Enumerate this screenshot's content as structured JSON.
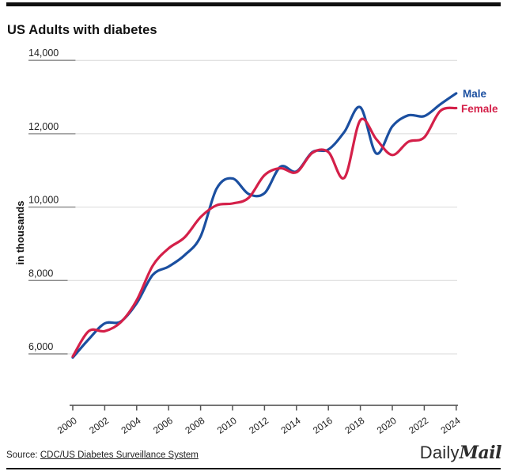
{
  "page": {
    "title": "US Adults with diabetes",
    "source_prefix": "Source: ",
    "source_link": "CDC/US Diabetes Surveillance System",
    "brand": {
      "daily": "Daily",
      "mail": "Mail"
    }
  },
  "chart_data": {
    "type": "line",
    "title": "US Adults with diabetes",
    "xlabel": "",
    "ylabel": "in thousands",
    "grid": "horizontal",
    "legend_position": "line-end-right",
    "x": [
      2000,
      2001,
      2002,
      2003,
      2004,
      2005,
      2006,
      2007,
      2008,
      2009,
      2010,
      2011,
      2012,
      2013,
      2014,
      2015,
      2016,
      2017,
      2018,
      2019,
      2020,
      2021,
      2022,
      2023,
      2024
    ],
    "x_tick_years": [
      2000,
      2002,
      2004,
      2006,
      2008,
      2010,
      2012,
      2014,
      2016,
      2018,
      2020,
      2022,
      2024
    ],
    "x_tick_labels": [
      "2000",
      "2002",
      "2004",
      "2006",
      "2008",
      "2010",
      "2012",
      "2014",
      "2016",
      "2018",
      "2020",
      "2022",
      "2024"
    ],
    "y_ticks": [
      6000,
      8000,
      10000,
      12000,
      14000
    ],
    "y_tick_labels": [
      "6,000",
      "8,000",
      "10,000",
      "12,000",
      "14,000"
    ],
    "xlim": [
      2000,
      2024
    ],
    "ylim": [
      5600,
      14000
    ],
    "series": [
      {
        "name": "Male",
        "color": "#1b4fa0",
        "values": [
          5900,
          6400,
          6830,
          6880,
          7380,
          8150,
          8380,
          8690,
          9200,
          10500,
          10780,
          10360,
          10380,
          11100,
          10970,
          11500,
          11570,
          12050,
          12720,
          11460,
          12200,
          12500,
          12480,
          12800,
          13100
        ]
      },
      {
        "name": "Female",
        "color": "#d42049",
        "values": [
          5930,
          6620,
          6620,
          6860,
          7460,
          8400,
          8875,
          9175,
          9725,
          10050,
          10100,
          10250,
          10870,
          11060,
          10950,
          11480,
          11500,
          10800,
          12370,
          11850,
          11420,
          11780,
          11900,
          12620,
          12700
        ]
      }
    ]
  }
}
